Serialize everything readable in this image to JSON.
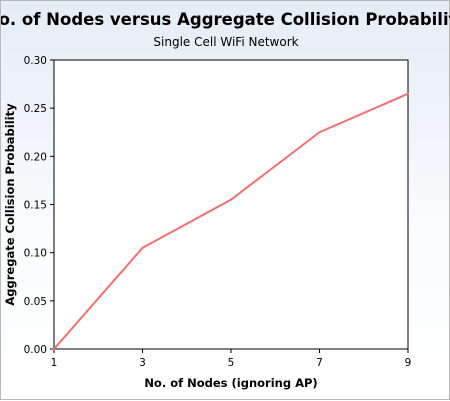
{
  "chart_data": {
    "type": "line",
    "title": "No. of Nodes versus Aggregate Collision Probability",
    "subtitle": "Single Cell WiFi Network",
    "xlabel": "No. of Nodes (ignoring AP)",
    "ylabel": "Aggregate Collision Probability",
    "x": [
      1,
      3,
      5,
      7,
      9
    ],
    "series": [
      {
        "values": [
          0.0,
          0.105,
          0.155,
          0.225,
          0.265
        ]
      }
    ],
    "xticks": [
      "1",
      "3",
      "5",
      "7",
      "9"
    ],
    "yticks": [
      "0.00",
      "0.05",
      "0.10",
      "0.15",
      "0.20",
      "0.25",
      "0.30"
    ],
    "xlim": [
      1,
      9
    ],
    "ylim": [
      0,
      0.3
    ],
    "grid": false,
    "legend": "none",
    "line_color": "#f07070",
    "plot_background": "#ffffff"
  }
}
